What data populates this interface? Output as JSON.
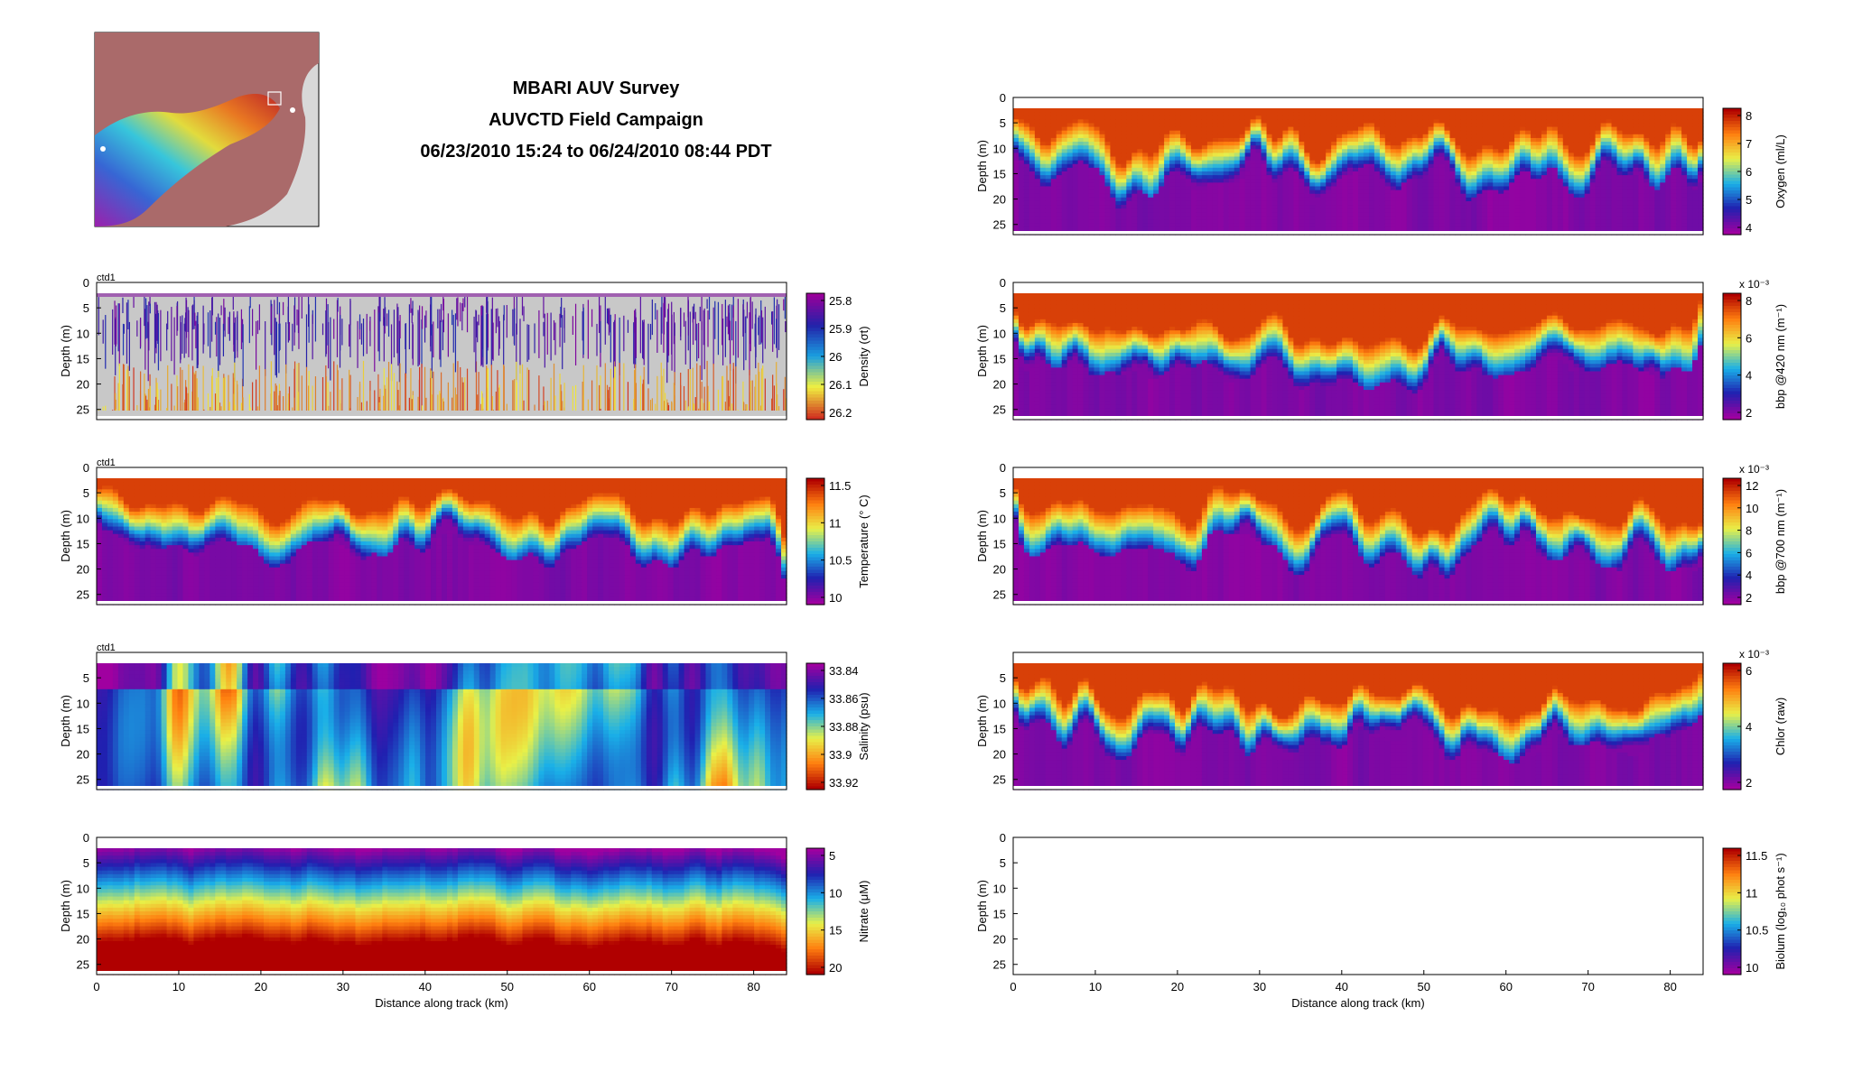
{
  "header": {
    "title": "MBARI AUV Survey",
    "subtitle": "AUVCTD Field Campaign",
    "date_range": "06/23/2010 15:24 to 06/24/2010 08:44 PDT"
  },
  "chart_data": [
    {
      "type": "heatmap",
      "id": "density",
      "corner_label": "ctd1",
      "pattern": "dots",
      "xlim": [
        0,
        84
      ],
      "ylim": [
        0,
        27
      ],
      "ylabel": "Depth (m)",
      "xlabel": "",
      "yticks": [
        0,
        5,
        10,
        15,
        20,
        25
      ],
      "colorbar": {
        "label": "Density (σt)",
        "ticks": [
          "25.8",
          "25.9",
          "26",
          "26.1",
          "26.2"
        ],
        "reversed": true
      },
      "colormap": [
        "#9a009a",
        "#2222aa",
        "#1a9fe0",
        "#f0f040",
        "#d03020"
      ]
    },
    {
      "type": "heatmap",
      "id": "temperature",
      "corner_label": "ctd1",
      "pattern": "thermo",
      "xlim": [
        0,
        84
      ],
      "ylim": [
        0,
        27
      ],
      "ylabel": "Depth (m)",
      "xlabel": "",
      "yticks": [
        0,
        5,
        10,
        15,
        20,
        25
      ],
      "colorbar": {
        "label": "Temperature (° C)",
        "ticks": [
          "11.5",
          "11",
          "10.5",
          "10"
        ],
        "reversed": false
      },
      "colormap": [
        "#a000a0",
        "#2020b0",
        "#1ab0e8",
        "#e8f048",
        "#ff8010",
        "#b00000"
      ]
    },
    {
      "type": "heatmap",
      "id": "salinity",
      "corner_label": "ctd1",
      "pattern": "salinity",
      "xlim": [
        0,
        84
      ],
      "ylim": [
        0,
        27
      ],
      "ylabel": "Depth (m)",
      "xlabel": "",
      "yticks": [
        5,
        10,
        15,
        20,
        25
      ],
      "colorbar": {
        "label": "Salinity (psu)",
        "ticks": [
          "33.84",
          "33.86",
          "33.88",
          "33.9",
          "33.92"
        ],
        "reversed": true
      },
      "colormap": [
        "#a000a0",
        "#2020b0",
        "#1ab0e8",
        "#e8f048",
        "#ff8010",
        "#b00000"
      ]
    },
    {
      "type": "heatmap",
      "id": "nitrate",
      "corner_label": "",
      "pattern": "nitrate",
      "xlim": [
        0,
        84
      ],
      "ylim": [
        0,
        27
      ],
      "ylabel": "Depth (m)",
      "xlabel": "Distance along track (km)",
      "yticks": [
        0,
        5,
        10,
        15,
        20,
        25
      ],
      "xticks": [
        0,
        10,
        20,
        30,
        40,
        50,
        60,
        70,
        80
      ],
      "colorbar": {
        "label": "Nitrate (μM)",
        "ticks": [
          "5",
          "10",
          "15",
          "20"
        ],
        "reversed": true
      },
      "colormap": [
        "#a000a0",
        "#2020b0",
        "#1ab0e8",
        "#e8f048",
        "#ff8010",
        "#b00000"
      ]
    },
    {
      "type": "heatmap",
      "id": "oxygen",
      "corner_label": "",
      "pattern": "bio",
      "xlim": [
        0,
        84
      ],
      "ylim": [
        0,
        27
      ],
      "ylabel": "Depth (m)",
      "xlabel": "",
      "yticks": [
        0,
        5,
        10,
        15,
        20,
        25
      ],
      "colorbar": {
        "label": "Oxygen (ml/L)",
        "ticks": [
          "8",
          "7",
          "6",
          "5",
          "4"
        ],
        "reversed": false
      },
      "colormap": [
        "#a000a0",
        "#2020b0",
        "#1ab0e8",
        "#e8f048",
        "#ff8010",
        "#b00000"
      ]
    },
    {
      "type": "heatmap",
      "id": "bbp420",
      "corner_label": "",
      "pattern": "bio",
      "xlim": [
        0,
        84
      ],
      "ylim": [
        0,
        27
      ],
      "ylabel": "Depth (m)",
      "xlabel": "",
      "yticks": [
        0,
        5,
        10,
        15,
        20,
        25
      ],
      "colorbar": {
        "label": "bbp @420 nm (m⁻¹)",
        "ticks": [
          "8",
          "6",
          "4",
          "2"
        ],
        "reversed": false,
        "exponent": "x 10⁻³"
      },
      "colormap": [
        "#a000a0",
        "#2020b0",
        "#1ab0e8",
        "#e8f048",
        "#ff8010",
        "#b00000"
      ]
    },
    {
      "type": "heatmap",
      "id": "bbp700",
      "corner_label": "",
      "pattern": "bio",
      "xlim": [
        0,
        84
      ],
      "ylim": [
        0,
        27
      ],
      "ylabel": "Depth (m)",
      "xlabel": "",
      "yticks": [
        0,
        5,
        10,
        15,
        20,
        25
      ],
      "colorbar": {
        "label": "bbp @700 nm (m⁻¹)",
        "ticks": [
          "12",
          "10",
          "8",
          "6",
          "4",
          "2"
        ],
        "reversed": false,
        "exponent": "x 10⁻³"
      },
      "colormap": [
        "#a000a0",
        "#2020b0",
        "#1ab0e8",
        "#e8f048",
        "#ff8010",
        "#b00000"
      ]
    },
    {
      "type": "heatmap",
      "id": "chlor",
      "corner_label": "",
      "pattern": "bio",
      "xlim": [
        0,
        84
      ],
      "ylim": [
        0,
        27
      ],
      "ylabel": "Depth (m)",
      "xlabel": "",
      "yticks": [
        5,
        10,
        15,
        20,
        25
      ],
      "colorbar": {
        "label": "Chlor (raw)",
        "ticks": [
          "6",
          "4",
          "2"
        ],
        "reversed": false,
        "exponent": "x 10⁻³"
      },
      "colormap": [
        "#a000a0",
        "#2020b0",
        "#1ab0e8",
        "#e8f048",
        "#ff8010",
        "#b00000"
      ]
    },
    {
      "type": "heatmap",
      "id": "biolum",
      "corner_label": "",
      "pattern": "empty",
      "xlim": [
        0,
        84
      ],
      "ylim": [
        0,
        27
      ],
      "ylabel": "Depth (m)",
      "xlabel": "Distance along track (km)",
      "yticks": [
        0,
        5,
        10,
        15,
        20,
        25
      ],
      "xticks": [
        0,
        10,
        20,
        30,
        40,
        50,
        60,
        70,
        80
      ],
      "colorbar": {
        "label": "Biolum (log₁₀ phot s⁻¹)",
        "ticks": [
          "11.5",
          "11",
          "10.5",
          "10"
        ],
        "reversed": false
      },
      "colormap": [
        "#a000a0",
        "#2020b0",
        "#1ab0e8",
        "#e8f048",
        "#ff8010",
        "#b00000"
      ]
    }
  ],
  "map_inset": {
    "land_color": "#aa6a6a",
    "background_color": "#d8d8d8"
  }
}
